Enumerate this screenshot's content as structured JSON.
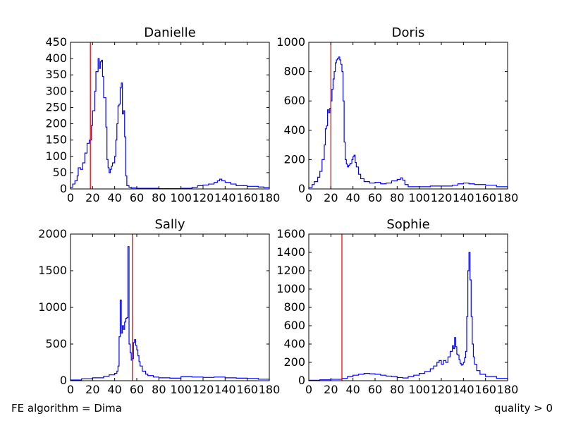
{
  "footer": {
    "left": "FE algorithm = Dima",
    "right": "quality > 0"
  },
  "chart_data": [
    {
      "type": "histogram",
      "title": "Danielle",
      "xlabel": "",
      "ylabel": "",
      "xlim": [
        0,
        180
      ],
      "ylim": [
        0,
        450
      ],
      "xticks": [
        0,
        20,
        40,
        60,
        80,
        100,
        120,
        140,
        160,
        180
      ],
      "yticks": [
        0,
        50,
        100,
        150,
        200,
        250,
        300,
        350,
        400,
        450
      ],
      "line_color": "#0000ff",
      "marker": {
        "x": 18,
        "color": "#ff0000"
      },
      "points": [
        [
          0,
          5
        ],
        [
          2,
          15
        ],
        [
          4,
          25
        ],
        [
          6,
          40
        ],
        [
          7,
          65
        ],
        [
          9,
          60
        ],
        [
          11,
          80
        ],
        [
          13,
          110
        ],
        [
          15,
          140
        ],
        [
          17,
          150
        ],
        [
          19,
          195
        ],
        [
          20,
          240
        ],
        [
          22,
          300
        ],
        [
          23,
          360
        ],
        [
          25,
          400
        ],
        [
          26,
          370
        ],
        [
          27,
          390
        ],
        [
          28,
          395
        ],
        [
          29,
          345
        ],
        [
          30,
          280
        ],
        [
          32,
          190
        ],
        [
          33,
          90
        ],
        [
          34,
          65
        ],
        [
          35,
          50
        ],
        [
          36,
          60
        ],
        [
          37,
          70
        ],
        [
          38,
          80
        ],
        [
          40,
          100
        ],
        [
          41,
          150
        ],
        [
          42,
          200
        ],
        [
          43,
          255
        ],
        [
          44,
          260
        ],
        [
          45,
          310
        ],
        [
          46,
          325
        ],
        [
          47,
          230
        ],
        [
          48,
          240
        ],
        [
          49,
          160
        ],
        [
          50,
          40
        ],
        [
          51,
          10
        ],
        [
          53,
          5
        ],
        [
          55,
          3
        ],
        [
          60,
          2
        ],
        [
          80,
          1
        ],
        [
          100,
          2
        ],
        [
          110,
          5
        ],
        [
          115,
          10
        ],
        [
          120,
          12
        ],
        [
          125,
          15
        ],
        [
          130,
          20
        ],
        [
          133,
          25
        ],
        [
          135,
          30
        ],
        [
          137,
          25
        ],
        [
          140,
          20
        ],
        [
          145,
          15
        ],
        [
          150,
          10
        ],
        [
          160,
          8
        ],
        [
          170,
          6
        ],
        [
          175,
          4
        ],
        [
          180,
          3
        ]
      ]
    },
    {
      "type": "histogram",
      "title": "Doris",
      "xlabel": "",
      "ylabel": "",
      "xlim": [
        0,
        180
      ],
      "ylim": [
        0,
        1000
      ],
      "xticks": [
        0,
        20,
        40,
        60,
        80,
        100,
        120,
        140,
        160,
        180
      ],
      "yticks": [
        0,
        200,
        400,
        600,
        800,
        1000
      ],
      "line_color": "#0000ff",
      "marker": {
        "x": 20,
        "color": "#ff0000"
      },
      "points": [
        [
          0,
          10
        ],
        [
          3,
          30
        ],
        [
          5,
          50
        ],
        [
          8,
          80
        ],
        [
          10,
          120
        ],
        [
          12,
          200
        ],
        [
          14,
          300
        ],
        [
          15,
          410
        ],
        [
          16,
          430
        ],
        [
          17,
          540
        ],
        [
          18,
          520
        ],
        [
          19,
          550
        ],
        [
          20,
          600
        ],
        [
          21,
          680
        ],
        [
          22,
          750
        ],
        [
          23,
          800
        ],
        [
          24,
          860
        ],
        [
          25,
          880
        ],
        [
          26,
          890
        ],
        [
          27,
          900
        ],
        [
          28,
          880
        ],
        [
          29,
          850
        ],
        [
          30,
          800
        ],
        [
          31,
          600
        ],
        [
          32,
          320
        ],
        [
          33,
          200
        ],
        [
          34,
          170
        ],
        [
          35,
          150
        ],
        [
          36,
          160
        ],
        [
          37,
          170
        ],
        [
          38,
          175
        ],
        [
          39,
          200
        ],
        [
          40,
          220
        ],
        [
          41,
          230
        ],
        [
          42,
          180
        ],
        [
          43,
          150
        ],
        [
          45,
          100
        ],
        [
          47,
          70
        ],
        [
          50,
          50
        ],
        [
          55,
          40
        ],
        [
          60,
          45
        ],
        [
          65,
          35
        ],
        [
          70,
          40
        ],
        [
          75,
          55
        ],
        [
          80,
          65
        ],
        [
          83,
          75
        ],
        [
          85,
          60
        ],
        [
          87,
          30
        ],
        [
          90,
          15
        ],
        [
          100,
          15
        ],
        [
          110,
          20
        ],
        [
          120,
          20
        ],
        [
          130,
          25
        ],
        [
          135,
          35
        ],
        [
          140,
          40
        ],
        [
          145,
          35
        ],
        [
          150,
          30
        ],
        [
          160,
          25
        ],
        [
          170,
          15
        ],
        [
          180,
          8
        ]
      ]
    },
    {
      "type": "histogram",
      "title": "Sally",
      "xlabel": "",
      "ylabel": "",
      "xlim": [
        0,
        180
      ],
      "ylim": [
        0,
        2000
      ],
      "xticks": [
        0,
        20,
        40,
        60,
        80,
        100,
        120,
        140,
        160,
        180
      ],
      "yticks": [
        0,
        500,
        1000,
        1500,
        2000
      ],
      "line_color": "#0000ff",
      "marker": {
        "x": 56,
        "color": "#ff0000"
      },
      "points": [
        [
          0,
          10
        ],
        [
          10,
          25
        ],
        [
          20,
          40
        ],
        [
          30,
          60
        ],
        [
          35,
          80
        ],
        [
          40,
          100
        ],
        [
          42,
          130
        ],
        [
          43,
          200
        ],
        [
          44,
          600
        ],
        [
          45,
          1100
        ],
        [
          46,
          650
        ],
        [
          47,
          750
        ],
        [
          48,
          700
        ],
        [
          49,
          800
        ],
        [
          50,
          850
        ],
        [
          51,
          860
        ],
        [
          52,
          1830
        ],
        [
          53,
          500
        ],
        [
          54,
          380
        ],
        [
          55,
          280
        ],
        [
          56,
          300
        ],
        [
          57,
          520
        ],
        [
          58,
          560
        ],
        [
          59,
          480
        ],
        [
          60,
          420
        ],
        [
          61,
          340
        ],
        [
          62,
          260
        ],
        [
          63,
          200
        ],
        [
          65,
          130
        ],
        [
          68,
          90
        ],
        [
          70,
          70
        ],
        [
          75,
          50
        ],
        [
          80,
          40
        ],
        [
          90,
          35
        ],
        [
          100,
          55
        ],
        [
          110,
          50
        ],
        [
          120,
          45
        ],
        [
          130,
          50
        ],
        [
          140,
          40
        ],
        [
          150,
          35
        ],
        [
          160,
          30
        ],
        [
          170,
          20
        ],
        [
          180,
          10
        ]
      ]
    },
    {
      "type": "histogram",
      "title": "Sophie",
      "xlabel": "",
      "ylabel": "",
      "xlim": [
        0,
        180
      ],
      "ylim": [
        0,
        1600
      ],
      "xticks": [
        0,
        20,
        40,
        60,
        80,
        100,
        120,
        140,
        160,
        180
      ],
      "yticks": [
        0,
        200,
        400,
        600,
        800,
        1000,
        1200,
        1400,
        1600
      ],
      "line_color": "#0000ff",
      "marker": {
        "x": 30,
        "color": "#ff0000"
      },
      "points": [
        [
          0,
          5
        ],
        [
          10,
          10
        ],
        [
          20,
          15
        ],
        [
          30,
          25
        ],
        [
          35,
          45
        ],
        [
          40,
          60
        ],
        [
          45,
          70
        ],
        [
          50,
          80
        ],
        [
          55,
          75
        ],
        [
          60,
          70
        ],
        [
          65,
          60
        ],
        [
          70,
          50
        ],
        [
          75,
          45
        ],
        [
          80,
          35
        ],
        [
          85,
          30
        ],
        [
          90,
          45
        ],
        [
          95,
          60
        ],
        [
          100,
          80
        ],
        [
          105,
          100
        ],
        [
          110,
          130
        ],
        [
          113,
          160
        ],
        [
          116,
          200
        ],
        [
          118,
          220
        ],
        [
          120,
          180
        ],
        [
          122,
          220
        ],
        [
          124,
          200
        ],
        [
          126,
          260
        ],
        [
          128,
          320
        ],
        [
          130,
          380
        ],
        [
          131,
          350
        ],
        [
          132,
          470
        ],
        [
          133,
          370
        ],
        [
          134,
          290
        ],
        [
          135,
          280
        ],
        [
          136,
          230
        ],
        [
          137,
          190
        ],
        [
          138,
          170
        ],
        [
          139,
          180
        ],
        [
          140,
          200
        ],
        [
          141,
          250
        ],
        [
          142,
          320
        ],
        [
          143,
          700
        ],
        [
          144,
          1200
        ],
        [
          145,
          1400
        ],
        [
          146,
          1100
        ],
        [
          147,
          700
        ],
        [
          148,
          400
        ],
        [
          149,
          260
        ],
        [
          150,
          180
        ],
        [
          152,
          110
        ],
        [
          155,
          70
        ],
        [
          160,
          45
        ],
        [
          170,
          25
        ],
        [
          180,
          8
        ]
      ]
    }
  ]
}
